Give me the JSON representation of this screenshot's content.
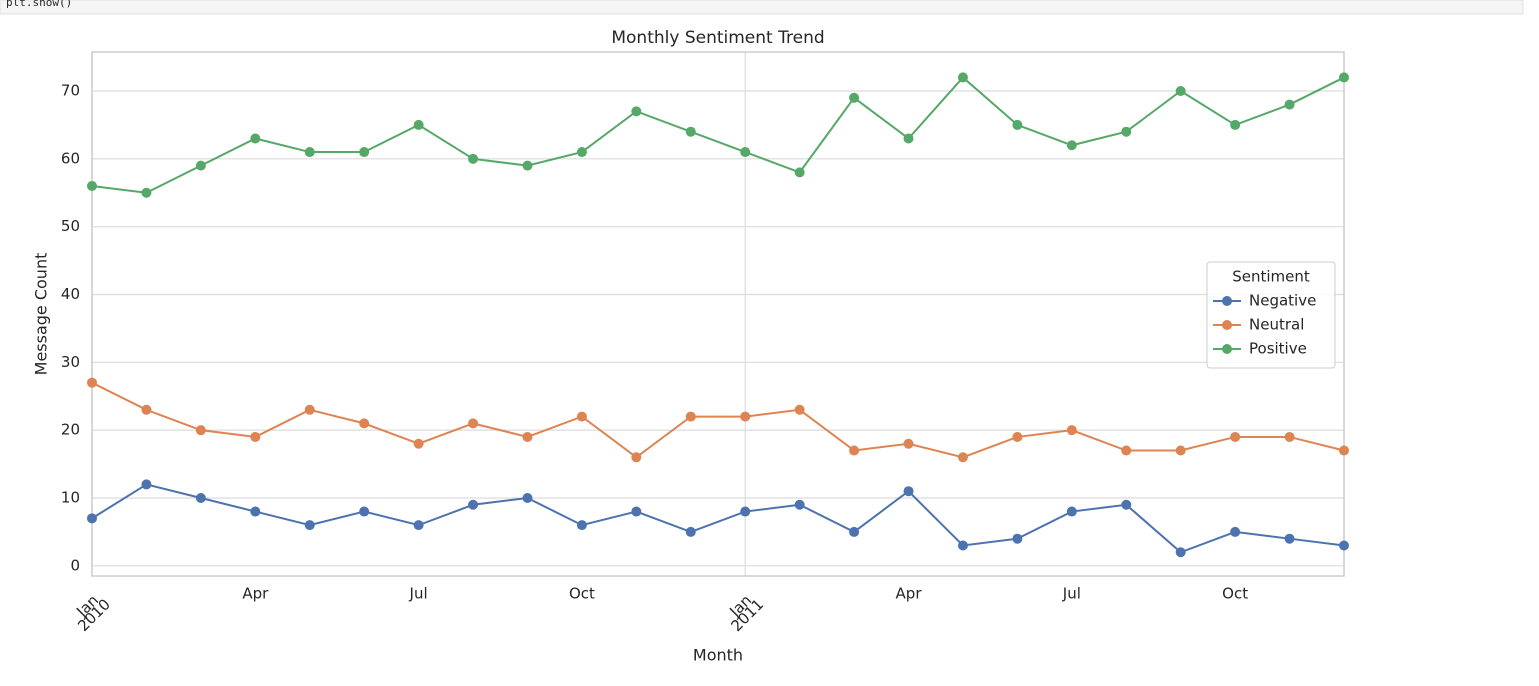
{
  "code": "plt.show()",
  "chart_data": {
    "type": "line",
    "title": "Monthly Sentiment Trend",
    "x_label": "Month",
    "y_label": "Message Count",
    "x": [
      "2010-01",
      "2010-02",
      "2010-03",
      "2010-04",
      "2010-05",
      "2010-06",
      "2010-07",
      "2010-08",
      "2010-09",
      "2010-10",
      "2010-11",
      "2010-12",
      "2011-01",
      "2011-02",
      "2011-03",
      "2011-04",
      "2011-05",
      "2011-06",
      "2011-07",
      "2011-08",
      "2011-09",
      "2011-10",
      "2011-11",
      "2011-12"
    ],
    "series": [
      {
        "name": "Negative",
        "color": "#4c72b0",
        "values": [
          7,
          12,
          10,
          8,
          6,
          8,
          6,
          9,
          10,
          6,
          8,
          5,
          8,
          9,
          5,
          11,
          3,
          4,
          8,
          9,
          2,
          5,
          4,
          3
        ]
      },
      {
        "name": "Neutral",
        "color": "#dd8452",
        "values": [
          27,
          23,
          20,
          19,
          23,
          21,
          18,
          21,
          19,
          22,
          16,
          22,
          22,
          23,
          17,
          18,
          16,
          19,
          20,
          17,
          17,
          19,
          19,
          17
        ]
      },
      {
        "name": "Positive",
        "color": "#55a868",
        "values": [
          56,
          55,
          59,
          63,
          61,
          61,
          65,
          60,
          59,
          61,
          67,
          64,
          61,
          58,
          69,
          63,
          72,
          65,
          62,
          64,
          70,
          65,
          68,
          72
        ]
      }
    ],
    "xlim": [
      "2010-01",
      "2011-12"
    ],
    "xticks": [
      {
        "value": "2010-01",
        "label": [
          "Jan",
          "2010"
        ]
      },
      {
        "value": "2010-04",
        "label": [
          "Apr"
        ]
      },
      {
        "value": "2010-07",
        "label": [
          "Jul"
        ]
      },
      {
        "value": "2010-10",
        "label": [
          "Oct"
        ]
      },
      {
        "value": "2011-01",
        "label": [
          "Jan",
          "2011"
        ]
      },
      {
        "value": "2011-04",
        "label": [
          "Apr"
        ]
      },
      {
        "value": "2011-07",
        "label": [
          "Jul"
        ]
      },
      {
        "value": "2011-10",
        "label": [
          "Oct"
        ]
      }
    ],
    "ylim": [
      -1.5,
      75.75
    ],
    "yticks": [
      0,
      10,
      20,
      30,
      40,
      50,
      60,
      70
    ],
    "grid": true,
    "legend_title": "Sentiment",
    "legend_loc": "center right"
  }
}
